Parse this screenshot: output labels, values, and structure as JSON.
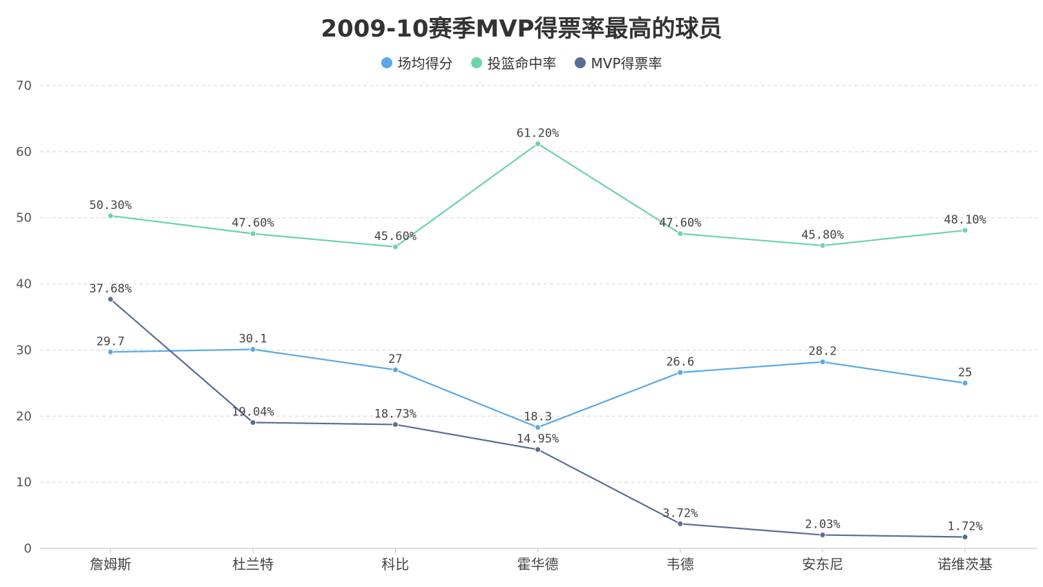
{
  "chart_data": {
    "type": "line",
    "title": "2009-10赛季MVP得票率最高的球员",
    "categories": [
      "詹姆斯",
      "杜兰特",
      "科比",
      "霍华德",
      "韦德",
      "安东尼",
      "诺维茨基"
    ],
    "ylim": [
      0,
      70
    ],
    "yticks": [
      0,
      10,
      20,
      30,
      40,
      50,
      60,
      70
    ],
    "grid": true,
    "legend_position": "top-center",
    "series": [
      {
        "name": "场均得分",
        "color": "#5aa8e6",
        "values": [
          29.7,
          30.1,
          27,
          18.3,
          26.6,
          28.2,
          25
        ],
        "labels": [
          "29.7",
          "30.1",
          "27",
          "18.3",
          "26.6",
          "28.2",
          "25"
        ]
      },
      {
        "name": "投篮命中率",
        "color": "#6dd3a8",
        "values": [
          50.3,
          47.6,
          45.6,
          61.2,
          47.6,
          45.8,
          48.1
        ],
        "labels": [
          "50.30%",
          "47.60%",
          "45.60%",
          "61.20%",
          "47.60%",
          "45.80%",
          "48.10%"
        ]
      },
      {
        "name": "MVP得票率",
        "color": "#5a6e94",
        "values": [
          37.68,
          19.04,
          18.73,
          14.95,
          3.72,
          2.03,
          1.72
        ],
        "labels": [
          "37.68%",
          "19.04%",
          "18.73%",
          "14.95%",
          "3.72%",
          "2.03%",
          "1.72%"
        ]
      }
    ]
  }
}
